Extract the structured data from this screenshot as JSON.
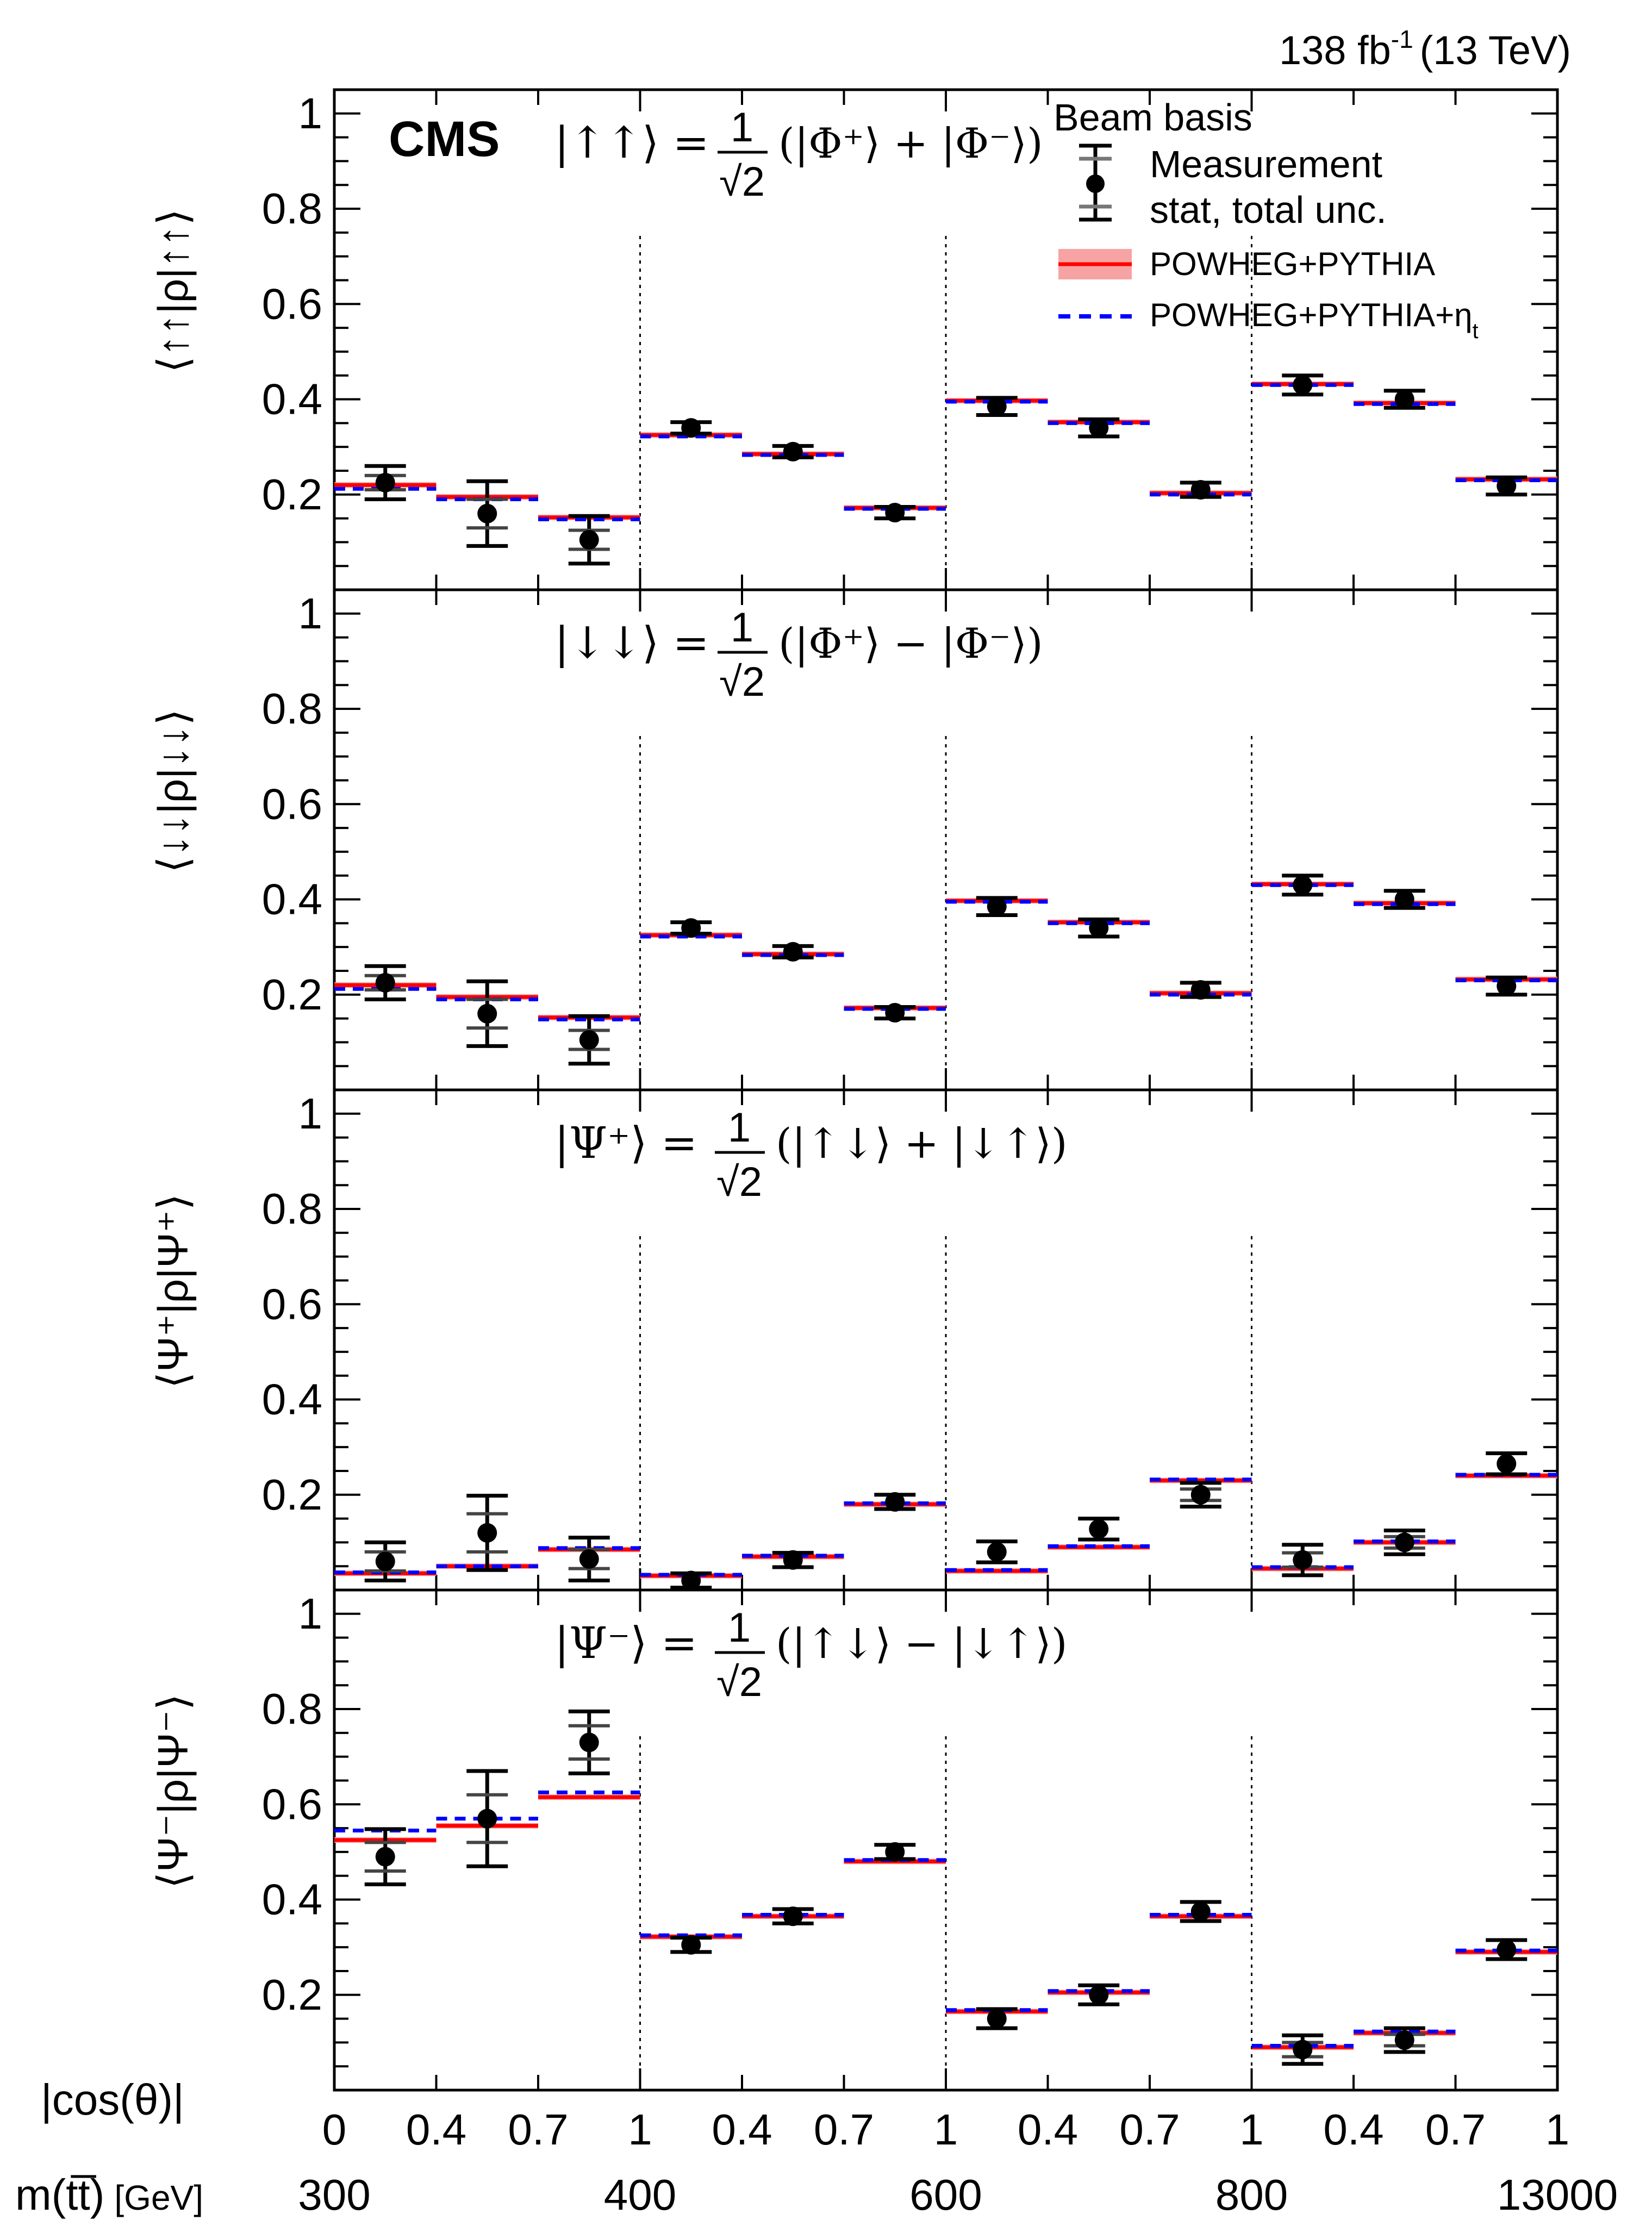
{
  "header": {
    "lumi": "138 fb",
    "lumi_exp": "-1",
    "energy": "(13 TeV)"
  },
  "cms_label": "CMS",
  "legend": {
    "title": "Beam basis",
    "measurement": "Measurement",
    "unc": "stat, total unc.",
    "pred1": "POWHEG+PYTHIA",
    "pred2": "POWHEG+PYTHIA+η",
    "pred2_sub": "t"
  },
  "colors": {
    "pred1": "#ff0000",
    "pred1_band": "#f7a3a3",
    "pred2": "#0000ff",
    "data": "#000000"
  },
  "x_axis": {
    "row1_label": "|cos(θ)|",
    "row2_label": "m(tt̅)",
    "row2_unit": "[GeV]",
    "cos_ticks": [
      "0",
      "0.4",
      "0.7",
      "1",
      "0.4",
      "0.7",
      "1",
      "0.4",
      "0.7",
      "1",
      "0.4",
      "0.7",
      "1"
    ],
    "mass_ticks": [
      "300",
      "400",
      "600",
      "800",
      "13000"
    ]
  },
  "chart_data": [
    {
      "type": "scatter",
      "ylabel": "⟨↑↑|ρ|↑↑⟩",
      "annotation": {
        "ket": "|↑↑⟩ =",
        "num": "1",
        "den": "√2",
        "rest": "(|Φ⁺⟩ + |Φ⁻⟩)"
      },
      "ylim": [
        0,
        1.05
      ],
      "yticks": [
        "0.2",
        "0.4",
        "0.6",
        "0.8",
        "1"
      ],
      "data": [
        0.225,
        0.16,
        0.105,
        0.34,
        0.29,
        0.162,
        0.385,
        0.34,
        0.21,
        0.43,
        0.4,
        0.218
      ],
      "stat": [
        0.015,
        0.03,
        0.02,
        0.008,
        0.008,
        0.008,
        0.01,
        0.01,
        0.01,
        0.01,
        0.01,
        0.01
      ],
      "total": [
        0.035,
        0.068,
        0.05,
        0.012,
        0.012,
        0.012,
        0.018,
        0.018,
        0.015,
        0.02,
        0.018,
        0.018
      ],
      "pred1": [
        0.22,
        0.195,
        0.152,
        0.325,
        0.285,
        0.172,
        0.397,
        0.352,
        0.203,
        0.432,
        0.392,
        0.232
      ],
      "pred2": [
        0.212,
        0.19,
        0.148,
        0.322,
        0.283,
        0.17,
        0.395,
        0.35,
        0.2,
        0.43,
        0.39,
        0.23
      ]
    },
    {
      "type": "scatter",
      "ylabel": "⟨↓↓|ρ|↓↓⟩",
      "annotation": {
        "ket": "|↓↓⟩ =",
        "num": "1",
        "den": "√2",
        "rest": "(|Φ⁺⟩ − |Φ⁻⟩)"
      },
      "ylim": [
        0,
        1.05
      ],
      "yticks": [
        "0.2",
        "0.4",
        "0.6",
        "0.8",
        "1"
      ],
      "data": [
        0.225,
        0.16,
        0.105,
        0.34,
        0.29,
        0.162,
        0.385,
        0.34,
        0.21,
        0.43,
        0.4,
        0.218
      ],
      "stat": [
        0.015,
        0.03,
        0.02,
        0.008,
        0.008,
        0.008,
        0.01,
        0.01,
        0.01,
        0.01,
        0.01,
        0.01
      ],
      "total": [
        0.035,
        0.068,
        0.05,
        0.012,
        0.012,
        0.012,
        0.018,
        0.018,
        0.015,
        0.02,
        0.018,
        0.018
      ],
      "pred1": [
        0.22,
        0.195,
        0.152,
        0.325,
        0.285,
        0.172,
        0.397,
        0.352,
        0.203,
        0.432,
        0.392,
        0.232
      ],
      "pred2": [
        0.212,
        0.19,
        0.148,
        0.322,
        0.283,
        0.17,
        0.395,
        0.35,
        0.2,
        0.43,
        0.39,
        0.23
      ]
    },
    {
      "type": "scatter",
      "ylabel": "⟨Ψ⁺|ρ|Ψ⁺⟩",
      "annotation": {
        "ket": "|Ψ⁺⟩ =",
        "num": "1",
        "den": "√2",
        "rest": "(|↑↓⟩ + |↓↑⟩)"
      },
      "ylim": [
        0,
        1.05
      ],
      "yticks": [
        "0.2",
        "0.4",
        "0.6",
        "0.8",
        "1"
      ],
      "data": [
        0.06,
        0.12,
        0.065,
        0.02,
        0.063,
        0.185,
        0.08,
        0.128,
        0.2,
        0.063,
        0.1,
        0.265
      ],
      "stat": [
        0.02,
        0.04,
        0.02,
        0.008,
        0.008,
        0.008,
        0.012,
        0.012,
        0.012,
        0.015,
        0.012,
        0.012
      ],
      "total": [
        0.04,
        0.078,
        0.045,
        0.015,
        0.015,
        0.015,
        0.022,
        0.022,
        0.025,
        0.032,
        0.025,
        0.022
      ],
      "pred1": [
        0.035,
        0.05,
        0.085,
        0.03,
        0.07,
        0.18,
        0.04,
        0.09,
        0.23,
        0.045,
        0.1,
        0.24
      ],
      "pred2": [
        0.037,
        0.05,
        0.088,
        0.032,
        0.072,
        0.182,
        0.042,
        0.092,
        0.232,
        0.048,
        0.102,
        0.242
      ]
    },
    {
      "type": "scatter",
      "ylabel": "⟨Ψ⁻|ρ|Ψ⁻⟩",
      "annotation": {
        "ket": "|Ψ⁻⟩ =",
        "num": "1",
        "den": "√2",
        "rest": "(|↑↓⟩ − |↓↑⟩)"
      },
      "ylim": [
        0,
        1.05
      ],
      "yticks": [
        "0.2",
        "0.4",
        "0.6",
        "0.8",
        "1"
      ],
      "data": [
        0.49,
        0.57,
        0.73,
        0.305,
        0.365,
        0.5,
        0.15,
        0.2,
        0.375,
        0.085,
        0.105,
        0.295
      ],
      "stat": [
        0.03,
        0.05,
        0.035,
        0.01,
        0.01,
        0.01,
        0.012,
        0.012,
        0.012,
        0.015,
        0.012,
        0.012
      ],
      "total": [
        0.058,
        0.1,
        0.065,
        0.015,
        0.015,
        0.015,
        0.02,
        0.02,
        0.02,
        0.03,
        0.025,
        0.02
      ],
      "pred1": [
        0.525,
        0.555,
        0.615,
        0.322,
        0.365,
        0.48,
        0.165,
        0.205,
        0.365,
        0.09,
        0.12,
        0.29
      ],
      "pred2": [
        0.545,
        0.57,
        0.625,
        0.325,
        0.368,
        0.483,
        0.168,
        0.208,
        0.368,
        0.093,
        0.123,
        0.293
      ]
    }
  ]
}
